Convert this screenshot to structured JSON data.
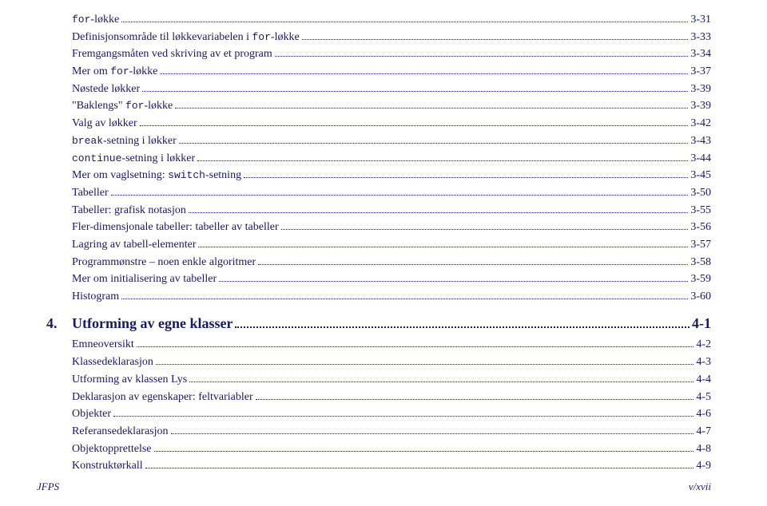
{
  "colors": {
    "text": "#1a1a5e",
    "background": "#ffffff",
    "dot": "#1a1a5e"
  },
  "typography": {
    "body_font": "Palatino",
    "mono_font": "Courier New",
    "entry_fontsize": 14,
    "section_fontsize": 18,
    "footer_fontsize": 13
  },
  "toc": {
    "entries": [
      {
        "pre": "",
        "mono": "for",
        "post": "-løkke",
        "page": "3-31"
      },
      {
        "pre": "Definisjonsområde til løkkevariabelen i ",
        "mono": "for",
        "post": "-løkke",
        "page": "3-33"
      },
      {
        "pre": "Fremgangsmåten ved skriving av et program",
        "mono": "",
        "post": "",
        "page": "3-34"
      },
      {
        "pre": "Mer om ",
        "mono": "for",
        "post": "-løkke",
        "page": "3-37"
      },
      {
        "pre": "Nøstede løkker",
        "mono": "",
        "post": "",
        "page": "3-39"
      },
      {
        "pre": "\"Baklengs\" ",
        "mono": "for",
        "post": "-løkke",
        "page": "3-39"
      },
      {
        "pre": "Valg av løkker",
        "mono": "",
        "post": "",
        "page": "3-42"
      },
      {
        "pre": "",
        "mono": "break",
        "post": "-setning i løkker",
        "page": "3-43"
      },
      {
        "pre": "",
        "mono": "continue",
        "post": "-setning i løkker",
        "page": "3-44"
      },
      {
        "pre": "Mer om vaglsetning: ",
        "mono": "switch",
        "post": "-setning",
        "page": "3-45"
      },
      {
        "pre": "Tabeller",
        "mono": "",
        "post": "",
        "page": "3-50"
      },
      {
        "pre": "Tabeller: grafisk notasjon",
        "mono": "",
        "post": "",
        "page": "3-55"
      },
      {
        "pre": "Fler-dimensjonale tabeller: tabeller av tabeller",
        "mono": "",
        "post": "",
        "page": "3-56"
      },
      {
        "pre": "Lagring av tabell-elementer",
        "mono": "",
        "post": "",
        "page": "3-57"
      },
      {
        "pre": "Programmønstre – noen enkle algoritmer",
        "mono": "",
        "post": "",
        "page": "3-58"
      },
      {
        "pre": "Mer om initialisering av tabeller",
        "mono": "",
        "post": "",
        "page": "3-59"
      },
      {
        "pre": "Histogram",
        "mono": "",
        "post": "",
        "page": "3-60"
      }
    ],
    "section": {
      "number": "4.",
      "title": "Utforming av egne klasser",
      "page": "4-1"
    },
    "entries2": [
      {
        "pre": "Emneoversikt",
        "mono": "",
        "post": "",
        "page": "4-2"
      },
      {
        "pre": "Klassedeklarasjon",
        "mono": "",
        "post": "",
        "page": "4-3"
      },
      {
        "pre": "Utforming av klassen Lys",
        "mono": "",
        "post": "",
        "page": "4-4"
      },
      {
        "pre": "Deklarasjon av egenskaper: feltvariabler",
        "mono": "",
        "post": "",
        "page": "4-5"
      },
      {
        "pre": "Objekter",
        "mono": "",
        "post": "",
        "page": "4-6"
      },
      {
        "pre": "Referansedeklarasjon",
        "mono": "",
        "post": "",
        "page": "4-7"
      },
      {
        "pre": "Objektopprettelse",
        "mono": "",
        "post": "",
        "page": "4-8"
      },
      {
        "pre": "Konstruktørkall",
        "mono": "",
        "post": "",
        "page": "4-9"
      }
    ]
  },
  "footer": {
    "left": "JFPS",
    "right": "v/xvii"
  }
}
